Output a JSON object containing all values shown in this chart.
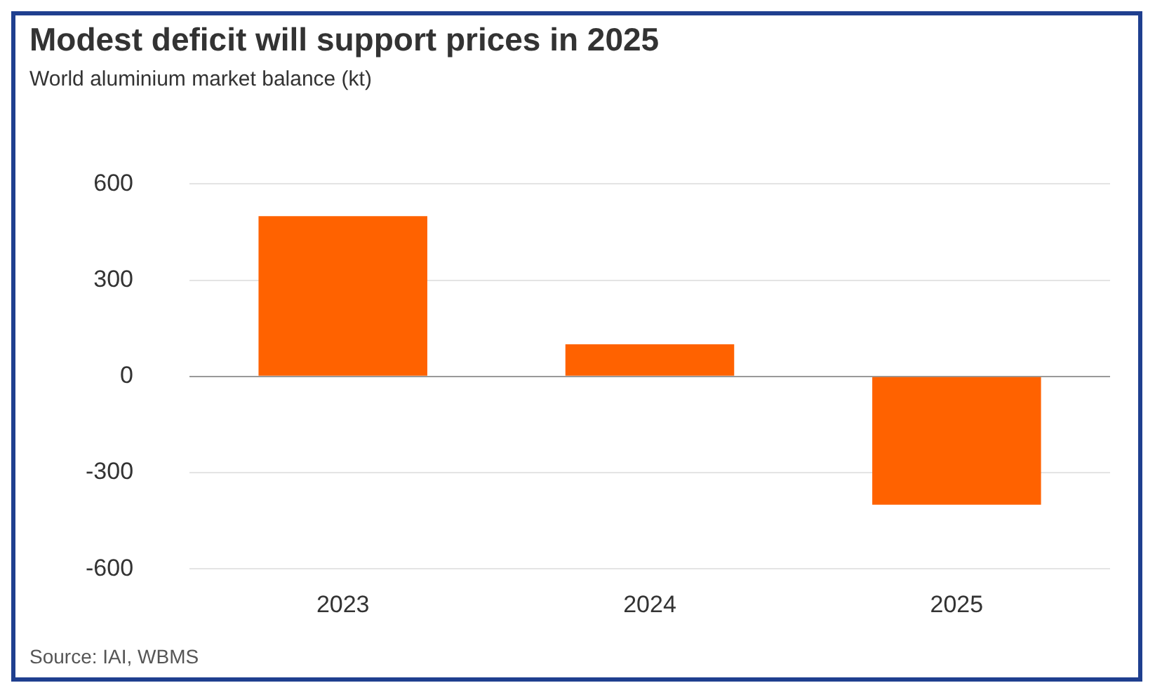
{
  "chart_data": {
    "type": "bar",
    "title": "Modest deficit will support prices in 2025",
    "subtitle": "World aluminium market balance (kt)",
    "categories": [
      "2023",
      "2024",
      "2025"
    ],
    "values": [
      500,
      100,
      -400
    ],
    "color": "#ff6200",
    "ylim": [
      -600,
      600
    ],
    "yticks": [
      -600,
      -300,
      0,
      300,
      600
    ],
    "grid": "y",
    "annotations": [
      "Source: IAI, WBMS"
    ]
  }
}
